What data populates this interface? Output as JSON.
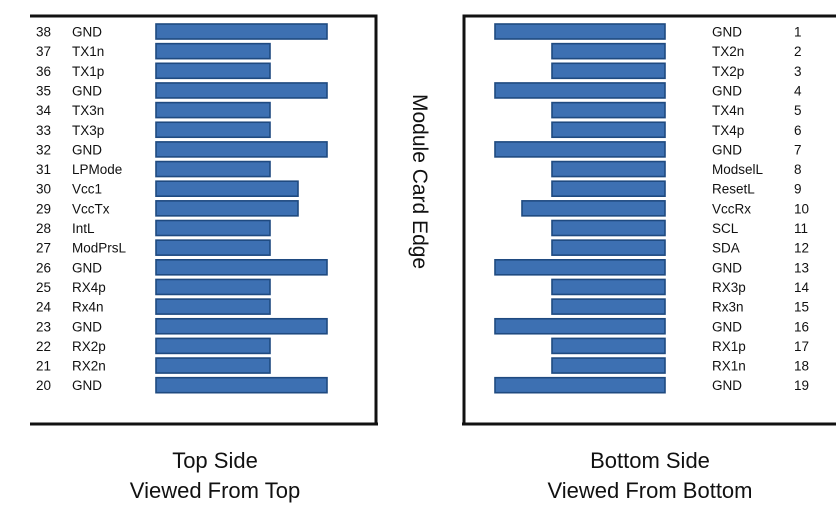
{
  "center_label": "Module Card Edge",
  "pin_color": "#3d70b2",
  "pin_border": "#1f4a80",
  "top_side": {
    "caption_line1": "Top Side",
    "caption_line2": "Viewed From Top",
    "pins": [
      {
        "num": "38",
        "name": "GND",
        "kind": "long"
      },
      {
        "num": "37",
        "name": "TX1n",
        "kind": "short"
      },
      {
        "num": "36",
        "name": "TX1p",
        "kind": "short"
      },
      {
        "num": "35",
        "name": "GND",
        "kind": "long"
      },
      {
        "num": "34",
        "name": "TX3n",
        "kind": "short"
      },
      {
        "num": "33",
        "name": "TX3p",
        "kind": "short"
      },
      {
        "num": "32",
        "name": "GND",
        "kind": "long"
      },
      {
        "num": "31",
        "name": "LPMode",
        "kind": "short"
      },
      {
        "num": "30",
        "name": "Vcc1",
        "kind": "mid"
      },
      {
        "num": "29",
        "name": "VccTx",
        "kind": "mid"
      },
      {
        "num": "28",
        "name": "IntL",
        "kind": "short"
      },
      {
        "num": "27",
        "name": "ModPrsL",
        "kind": "short"
      },
      {
        "num": "26",
        "name": "GND",
        "kind": "long"
      },
      {
        "num": "25",
        "name": "RX4p",
        "kind": "short"
      },
      {
        "num": "24",
        "name": "Rx4n",
        "kind": "short"
      },
      {
        "num": "23",
        "name": "GND",
        "kind": "long"
      },
      {
        "num": "22",
        "name": "RX2p",
        "kind": "short"
      },
      {
        "num": "21",
        "name": "RX2n",
        "kind": "short"
      },
      {
        "num": "20",
        "name": "GND",
        "kind": "long"
      }
    ]
  },
  "bottom_side": {
    "caption_line1": "Bottom Side",
    "caption_line2": "Viewed From Bottom",
    "pins": [
      {
        "num": "1",
        "name": "GND",
        "kind": "long"
      },
      {
        "num": "2",
        "name": "TX2n",
        "kind": "short"
      },
      {
        "num": "3",
        "name": "TX2p",
        "kind": "short"
      },
      {
        "num": "4",
        "name": "GND",
        "kind": "long"
      },
      {
        "num": "5",
        "name": "TX4n",
        "kind": "short"
      },
      {
        "num": "6",
        "name": "TX4p",
        "kind": "short"
      },
      {
        "num": "7",
        "name": "GND",
        "kind": "long"
      },
      {
        "num": "8",
        "name": "ModselL",
        "kind": "short"
      },
      {
        "num": "9",
        "name": "ResetL",
        "kind": "short"
      },
      {
        "num": "10",
        "name": "VccRx",
        "kind": "mid"
      },
      {
        "num": "11",
        "name": "SCL",
        "kind": "short"
      },
      {
        "num": "12",
        "name": "SDA",
        "kind": "short"
      },
      {
        "num": "13",
        "name": "GND",
        "kind": "long"
      },
      {
        "num": "14",
        "name": "RX3p",
        "kind": "short"
      },
      {
        "num": "15",
        "name": "Rx3n",
        "kind": "short"
      },
      {
        "num": "16",
        "name": "GND",
        "kind": "long"
      },
      {
        "num": "17",
        "name": "RX1p",
        "kind": "short"
      },
      {
        "num": "18",
        "name": "RX1n",
        "kind": "short"
      },
      {
        "num": "19",
        "name": "GND",
        "kind": "long"
      }
    ]
  }
}
